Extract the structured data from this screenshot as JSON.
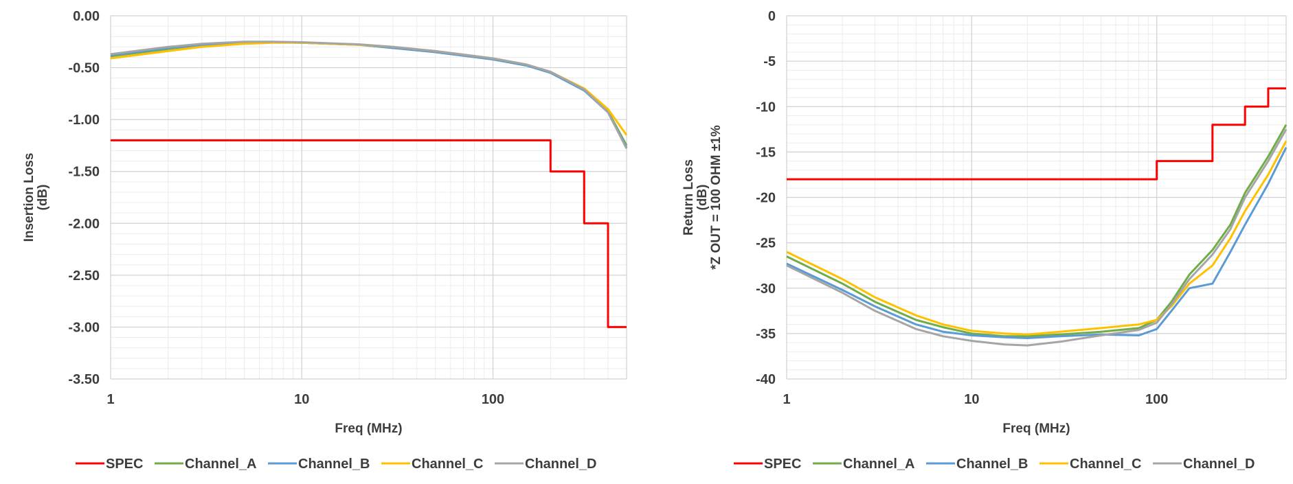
{
  "colors": {
    "SPEC": "#ff0000",
    "Channel_A": "#70ad47",
    "Channel_B": "#5b9bd5",
    "Channel_C": "#ffc000",
    "Channel_D": "#a5a5a5",
    "grid_major": "#d0d0d0",
    "grid_minor": "#ececec"
  },
  "legend": [
    "SPEC",
    "Channel_A",
    "Channel_B",
    "Channel_C",
    "Channel_D"
  ],
  "chart_data": [
    {
      "type": "line",
      "id": "insertion_loss",
      "title": "",
      "xlabel": "Freq (MHz)",
      "ylabel_lines": [
        "Insertion Loss",
        "(dB)"
      ],
      "xscale": "log",
      "xlim": [
        1,
        500
      ],
      "ylim": [
        -3.5,
        0
      ],
      "xticks": [
        1,
        10,
        100
      ],
      "xtick_labels": [
        "1",
        "10",
        "100"
      ],
      "yticks": [
        0,
        -0.5,
        -1,
        -1.5,
        -2,
        -2.5,
        -3,
        -3.5
      ],
      "ytick_labels": [
        "0.00",
        "-0.50",
        "-1.00",
        "-1.50",
        "-2.00",
        "-2.50",
        "-3.00",
        "-3.50"
      ],
      "grid": true,
      "legend_position": "bottom",
      "series": [
        {
          "name": "SPEC",
          "step": true,
          "x": [
            1,
            200,
            200,
            300,
            300,
            400,
            400,
            500
          ],
          "y": [
            -1.2,
            -1.2,
            -1.5,
            -1.5,
            -2.0,
            -2.0,
            -3.0,
            -3.0
          ]
        },
        {
          "name": "Channel_A",
          "x": [
            1,
            2,
            3,
            5,
            7,
            10,
            20,
            30,
            50,
            100,
            150,
            200,
            300,
            400,
            500
          ],
          "y": [
            -0.39,
            -0.32,
            -0.28,
            -0.26,
            -0.255,
            -0.26,
            -0.28,
            -0.31,
            -0.35,
            -0.42,
            -0.48,
            -0.55,
            -0.72,
            -0.92,
            -1.25
          ]
        },
        {
          "name": "Channel_B",
          "x": [
            1,
            2,
            3,
            5,
            7,
            10,
            20,
            30,
            50,
            100,
            150,
            200,
            300,
            400,
            500
          ],
          "y": [
            -0.38,
            -0.31,
            -0.28,
            -0.26,
            -0.255,
            -0.26,
            -0.28,
            -0.31,
            -0.35,
            -0.42,
            -0.48,
            -0.55,
            -0.72,
            -0.93,
            -1.27
          ]
        },
        {
          "name": "Channel_C",
          "x": [
            1,
            2,
            3,
            5,
            7,
            10,
            20,
            30,
            50,
            100,
            150,
            200,
            300,
            400,
            500
          ],
          "y": [
            -0.41,
            -0.34,
            -0.3,
            -0.27,
            -0.26,
            -0.26,
            -0.28,
            -0.3,
            -0.34,
            -0.41,
            -0.47,
            -0.54,
            -0.7,
            -0.9,
            -1.15
          ]
        },
        {
          "name": "Channel_D",
          "x": [
            1,
            2,
            3,
            5,
            7,
            10,
            20,
            30,
            50,
            100,
            150,
            200,
            300,
            400,
            500
          ],
          "y": [
            -0.37,
            -0.3,
            -0.27,
            -0.25,
            -0.25,
            -0.255,
            -0.275,
            -0.3,
            -0.34,
            -0.41,
            -0.47,
            -0.54,
            -0.71,
            -0.93,
            -1.28
          ]
        }
      ]
    },
    {
      "type": "line",
      "id": "return_loss",
      "title": "",
      "xlabel": "Freq (MHz)",
      "ylabel_lines": [
        "Return Loss",
        "(dB)",
        "*Z OUT = 100 OHM  ±1%"
      ],
      "xscale": "log",
      "xlim": [
        1,
        500
      ],
      "ylim": [
        -40,
        0
      ],
      "xticks": [
        1,
        10,
        100
      ],
      "xtick_labels": [
        "1",
        "10",
        "100"
      ],
      "yticks": [
        0,
        -5,
        -10,
        -15,
        -20,
        -25,
        -30,
        -35,
        -40
      ],
      "ytick_labels": [
        "0",
        "-5",
        "-10",
        "-15",
        "-20",
        "-25",
        "-30",
        "-35",
        "-40"
      ],
      "grid": true,
      "legend_position": "bottom",
      "series": [
        {
          "name": "SPEC",
          "step": true,
          "x": [
            1,
            100,
            100,
            200,
            200,
            300,
            300,
            400,
            400,
            500
          ],
          "y": [
            -18,
            -18,
            -16,
            -16,
            -12,
            -12,
            -10,
            -10,
            -8,
            -8
          ]
        },
        {
          "name": "Channel_A",
          "x": [
            1,
            2,
            3,
            5,
            7,
            10,
            15,
            20,
            30,
            50,
            80,
            100,
            120,
            150,
            200,
            250,
            300,
            400,
            500
          ],
          "y": [
            -26.5,
            -29.5,
            -31.5,
            -33.5,
            -34.3,
            -35,
            -35.3,
            -35.3,
            -35.1,
            -34.8,
            -34.4,
            -33.5,
            -31.5,
            -28.5,
            -25.8,
            -23,
            -19.5,
            -15.5,
            -12
          ]
        },
        {
          "name": "Channel_B",
          "x": [
            1,
            2,
            3,
            5,
            7,
            10,
            15,
            20,
            30,
            50,
            80,
            100,
            120,
            150,
            200,
            250,
            300,
            400,
            500
          ],
          "y": [
            -27.3,
            -30.2,
            -32,
            -34,
            -34.8,
            -35.2,
            -35.4,
            -35.5,
            -35.3,
            -35.1,
            -35.2,
            -34.5,
            -32.5,
            -30,
            -29.5,
            -26,
            -23,
            -18.5,
            -14.5
          ]
        },
        {
          "name": "Channel_C",
          "x": [
            1,
            2,
            3,
            5,
            7,
            10,
            15,
            20,
            30,
            50,
            80,
            100,
            120,
            150,
            200,
            250,
            300,
            400,
            500
          ],
          "y": [
            -26,
            -29,
            -31,
            -33,
            -34,
            -34.7,
            -35,
            -35.1,
            -34.8,
            -34.4,
            -34,
            -33.5,
            -32,
            -29.5,
            -27.5,
            -24.5,
            -21.5,
            -17.5,
            -13.8
          ]
        },
        {
          "name": "Channel_D",
          "x": [
            1,
            2,
            3,
            5,
            7,
            10,
            15,
            20,
            30,
            50,
            80,
            100,
            120,
            150,
            200,
            250,
            300,
            400,
            500
          ],
          "y": [
            -27.5,
            -30.5,
            -32.5,
            -34.5,
            -35.3,
            -35.8,
            -36.2,
            -36.3,
            -35.9,
            -35.2,
            -34.6,
            -33.8,
            -31.8,
            -29,
            -26.3,
            -23.5,
            -20,
            -16,
            -12.5
          ]
        }
      ]
    }
  ]
}
